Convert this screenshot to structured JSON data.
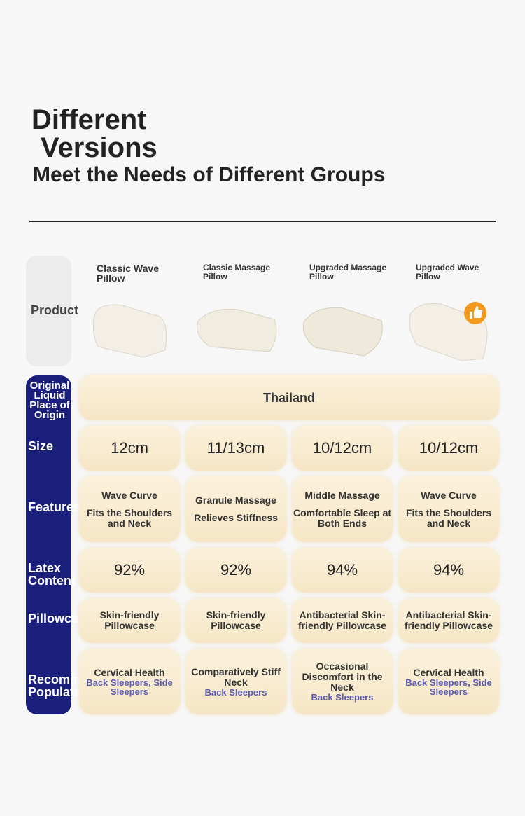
{
  "header": {
    "title_line1": "Different",
    "title_line2": "Versions",
    "subtitle": "Meet the Needs of Different Groups"
  },
  "table": {
    "row_labels": [
      "Product",
      "Original Liquid Place of Origin",
      "Size",
      "Features",
      "Latex Content",
      "Pillowcase",
      "Recommended Population"
    ],
    "products": [
      "Classic Wave Pillow",
      "Classic Massage Pillow",
      "Upgraded Massage Pillow",
      "Upgraded Wave Pillow"
    ],
    "origin": "Thailand",
    "sizes": [
      "12cm",
      "11/13cm",
      "10/12cm",
      "10/12cm"
    ],
    "features": [
      {
        "title": "Wave Curve",
        "desc": "Fits the Shoulders and Neck"
      },
      {
        "title": "Granule Massage",
        "desc": "Relieves Stiffness"
      },
      {
        "title": "Middle Massage",
        "desc": "Comfortable Sleep at Both Ends"
      },
      {
        "title": "Wave Curve",
        "desc": "Fits the Shoulders and Neck"
      }
    ],
    "latex": [
      "92%",
      "92%",
      "94%",
      "94%"
    ],
    "pillowcase": [
      "Skin-friendly Pillowcase",
      "Skin-friendly Pillowcase",
      "Antibacterial Skin-friendly Pillowcase",
      "Antibacterial Skin-friendly Pillowcase"
    ],
    "population": [
      {
        "title": "Cervical Health",
        "desc": "Back Sleepers, Side Sleepers"
      },
      {
        "title": "Comparatively Stiff Neck",
        "desc": "Back Sleepers"
      },
      {
        "title": "Occasional Discomfort in the Neck",
        "desc": "Back Sleepers"
      },
      {
        "title": "Cervical Health",
        "desc": "Back Sleepers, Side Sleepers"
      }
    ]
  }
}
